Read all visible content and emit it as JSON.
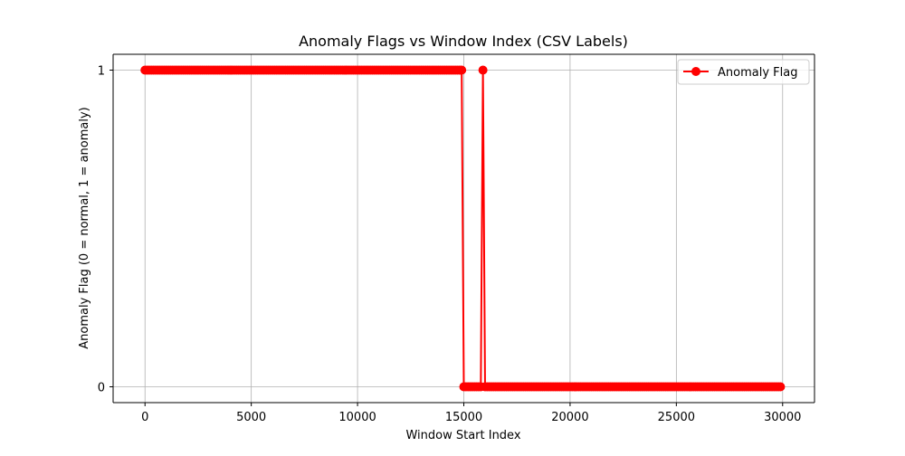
{
  "chart_data": {
    "type": "line",
    "title": "Anomaly Flags vs Window Index (CSV Labels)",
    "xlabel": "Window Start Index",
    "ylabel": "Anomaly Flag (0 = normal, 1 = anomaly)",
    "xlim": [
      -1500,
      31500
    ],
    "ylim": [
      -0.05,
      1.05
    ],
    "x_ticks": [
      0,
      5000,
      10000,
      15000,
      20000,
      25000,
      30000
    ],
    "x_tick_labels": [
      "0",
      "5000",
      "10000",
      "15000",
      "20000",
      "25000",
      "30000"
    ],
    "y_ticks": [
      0,
      1
    ],
    "y_tick_labels": [
      "0",
      "1"
    ],
    "grid": true,
    "legend_position": "top-right",
    "series": [
      {
        "name": "Anomaly Flag",
        "color": "#ff0000",
        "marker": "circle",
        "step": 100,
        "segments": [
          {
            "x_start": 0,
            "x_end": 14900,
            "value": 1
          },
          {
            "x_start": 15000,
            "x_end": 15800,
            "value": 0
          },
          {
            "x_start": 15900,
            "x_end": 15900,
            "value": 1
          },
          {
            "x_start": 16000,
            "x_end": 29900,
            "value": 0
          }
        ]
      }
    ]
  }
}
